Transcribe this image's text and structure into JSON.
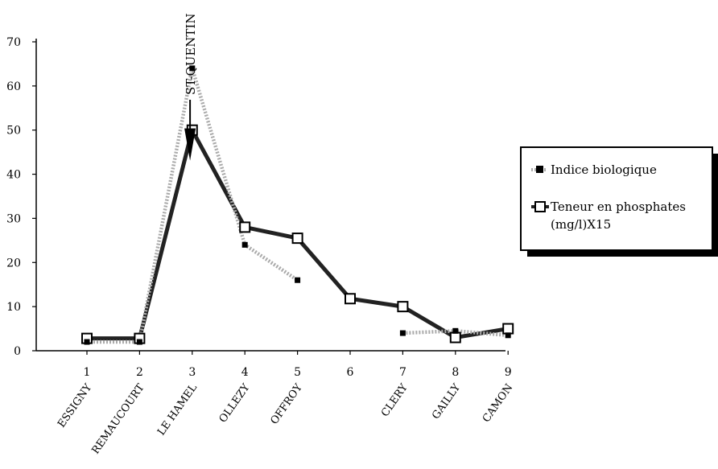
{
  "chart_data": {
    "type": "line",
    "x_ticks": [
      "1",
      "2",
      "3",
      "4",
      "5",
      "6",
      "7",
      "8",
      "9"
    ],
    "categories": [
      "ESSIGNY",
      "REMAUCOURT",
      "LE HAMEL",
      "OLLEZY",
      "OFFROY",
      "",
      "CLERY",
      "GAILLY",
      "CAMON"
    ],
    "ylim": [
      0,
      70
    ],
    "y_ticks": [
      0,
      10,
      20,
      30,
      40,
      50,
      60,
      70
    ],
    "grid": false,
    "legend_position": "right",
    "series": [
      {
        "name": "Indice biologique",
        "color": "#aaaaaa",
        "marker": "filled-square",
        "segments": [
          [
            [
              1,
              2
            ],
            [
              2,
              2
            ],
            [
              3,
              64
            ],
            [
              4,
              24
            ],
            [
              5,
              16
            ]
          ],
          [
            [
              7,
              4
            ],
            [
              8,
              4.5
            ],
            [
              9,
              3.5
            ]
          ]
        ]
      },
      {
        "name": "Teneur en phosphates (mg/l)X15",
        "color": "#222222",
        "marker": "open-square",
        "segments": [
          [
            [
              1,
              2.8
            ],
            [
              2,
              2.8
            ],
            [
              3,
              50
            ],
            [
              4,
              28
            ],
            [
              5,
              25.5
            ],
            [
              6,
              11.8
            ],
            [
              7,
              10
            ],
            [
              8,
              3
            ],
            [
              9,
              5
            ]
          ]
        ]
      }
    ],
    "annotations": [
      {
        "text": "ST-QUENTIN",
        "x": 2.5,
        "y": 44,
        "shape": "down-arrow"
      }
    ]
  },
  "legend": {
    "label_1": "Indice biologique",
    "label_2_line1": "Teneur en phosphates",
    "label_2_line2": "(mg/l)X15"
  }
}
